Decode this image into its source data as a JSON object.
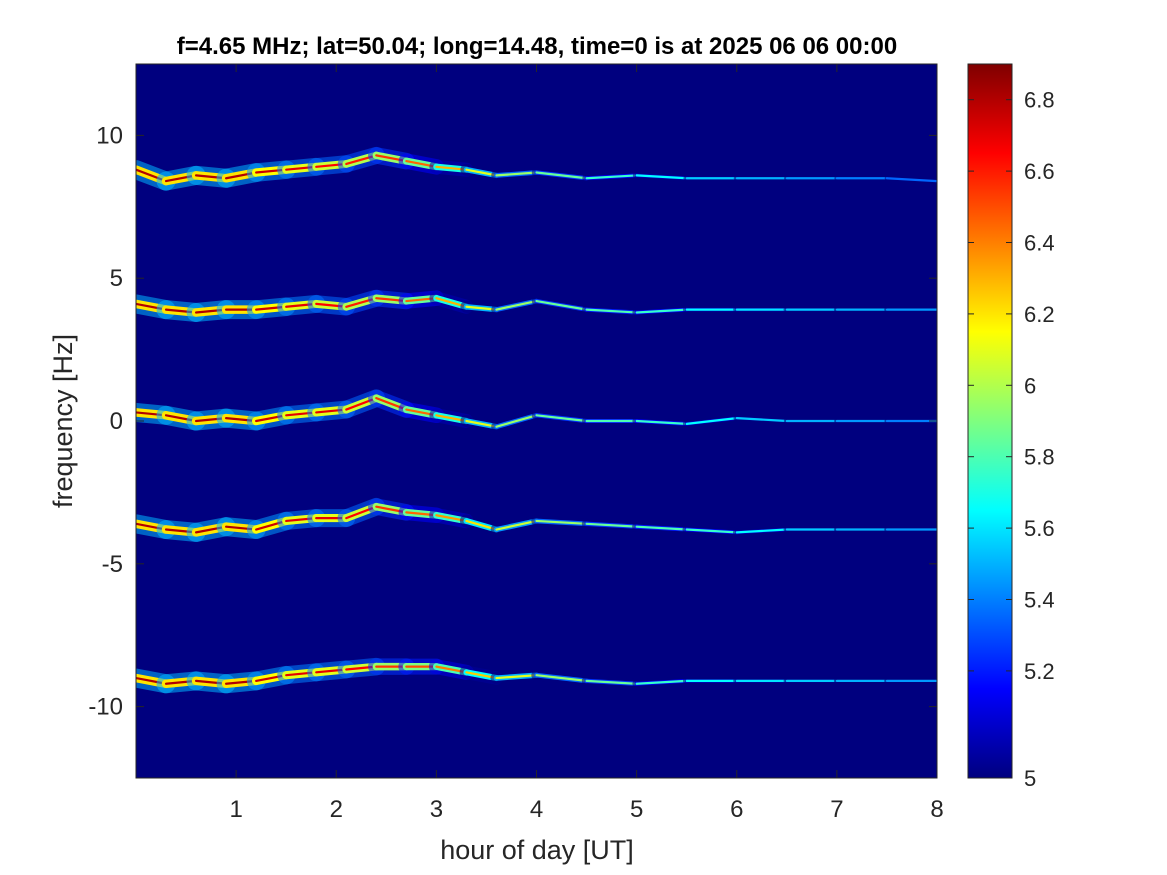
{
  "chart_data": {
    "type": "heatmap",
    "title": "f=4.65 MHz;  lat=50.04; long=14.48, time=0 is at 2025 06 06 00:00",
    "xlabel": "hour of day [UT]",
    "ylabel": "frequency [Hz]",
    "xlim": [
      0,
      8
    ],
    "ylim": [
      -12.5,
      12.5
    ],
    "x_ticks": [
      1,
      2,
      3,
      4,
      5,
      6,
      7,
      8
    ],
    "x_tick_labels": [
      "1",
      "2",
      "3",
      "4",
      "5",
      "6",
      "7",
      "8"
    ],
    "y_ticks": [
      10,
      5,
      0,
      -5,
      -10
    ],
    "y_tick_labels": [
      "10",
      "5",
      "0",
      "-5",
      "-10"
    ],
    "colorbar": {
      "colormap": "jet",
      "range": [
        4.9,
        6.9
      ],
      "ticks": [
        4.9,
        5.2,
        5.4,
        5.6,
        5.8,
        6.0,
        6.2,
        6.4,
        6.6,
        6.8
      ],
      "tick_labels": [
        "5",
        "5.2",
        "5.4",
        "5.6",
        "5.8",
        "6",
        "6.2",
        "6.4",
        "6.6",
        "6.8"
      ],
      "colors": [
        "#00007f",
        "#0000ff",
        "#007fff",
        "#00ffff",
        "#7fff7f",
        "#ffff00",
        "#ff7f00",
        "#ff0000",
        "#7f0000"
      ]
    },
    "background_value": 4.9,
    "traces": [
      {
        "points": [
          [
            0,
            8.8
          ],
          [
            0.3,
            8.4
          ],
          [
            0.6,
            8.6
          ],
          [
            0.9,
            8.5
          ],
          [
            1.2,
            8.7
          ],
          [
            1.5,
            8.8
          ],
          [
            1.8,
            8.9
          ],
          [
            2.1,
            9.0
          ],
          [
            2.4,
            9.3
          ],
          [
            2.7,
            9.1
          ],
          [
            3.0,
            8.9
          ],
          [
            3.3,
            8.8
          ],
          [
            3.6,
            8.6
          ],
          [
            4.0,
            8.7
          ],
          [
            4.5,
            8.5
          ],
          [
            5.0,
            8.6
          ],
          [
            5.5,
            8.5
          ],
          [
            6.0,
            8.5
          ],
          [
            6.5,
            8.5
          ],
          [
            7.0,
            8.5
          ],
          [
            7.5,
            8.5
          ],
          [
            8.0,
            8.4
          ]
        ],
        "strength": [
          6.8,
          6.8,
          6.8,
          6.8,
          6.8,
          6.7,
          6.7,
          6.6,
          6.6,
          6.5,
          6.4,
          6.2,
          6.0,
          5.9,
          5.8,
          5.7,
          5.6,
          5.5,
          5.5,
          5.4,
          5.4,
          5.3
        ]
      },
      {
        "points": [
          [
            0,
            4.1
          ],
          [
            0.3,
            3.9
          ],
          [
            0.6,
            3.8
          ],
          [
            0.9,
            3.9
          ],
          [
            1.2,
            3.9
          ],
          [
            1.5,
            4.0
          ],
          [
            1.8,
            4.1
          ],
          [
            2.1,
            4.0
          ],
          [
            2.4,
            4.3
          ],
          [
            2.7,
            4.2
          ],
          [
            3.0,
            4.3
          ],
          [
            3.3,
            4.0
          ],
          [
            3.6,
            3.9
          ],
          [
            4.0,
            4.2
          ],
          [
            4.5,
            3.9
          ],
          [
            5.0,
            3.8
          ],
          [
            5.5,
            3.9
          ],
          [
            6.0,
            3.9
          ],
          [
            6.5,
            3.9
          ],
          [
            7.0,
            3.9
          ],
          [
            7.5,
            3.9
          ],
          [
            8.0,
            3.9
          ]
        ],
        "strength": [
          6.8,
          6.8,
          6.8,
          6.8,
          6.8,
          6.7,
          6.7,
          6.6,
          6.6,
          6.5,
          6.4,
          6.2,
          6.0,
          5.9,
          5.8,
          5.8,
          5.7,
          5.6,
          5.6,
          5.5,
          5.5,
          5.4
        ]
      },
      {
        "points": [
          [
            0,
            0.3
          ],
          [
            0.3,
            0.2
          ],
          [
            0.6,
            0.0
          ],
          [
            0.9,
            0.1
          ],
          [
            1.2,
            0.0
          ],
          [
            1.5,
            0.2
          ],
          [
            1.8,
            0.3
          ],
          [
            2.1,
            0.4
          ],
          [
            2.4,
            0.8
          ],
          [
            2.7,
            0.4
          ],
          [
            3.0,
            0.2
          ],
          [
            3.3,
            0.0
          ],
          [
            3.6,
            -0.2
          ],
          [
            4.0,
            0.2
          ],
          [
            4.5,
            0.0
          ],
          [
            5.0,
            0.0
          ],
          [
            5.5,
            -0.1
          ],
          [
            6.0,
            0.1
          ],
          [
            6.5,
            0.0
          ],
          [
            7.0,
            0.0
          ],
          [
            7.5,
            0.0
          ],
          [
            8.0,
            0.0
          ]
        ],
        "strength": [
          6.8,
          6.8,
          6.8,
          6.8,
          6.8,
          6.7,
          6.7,
          6.7,
          6.6,
          6.5,
          6.4,
          6.2,
          6.0,
          5.9,
          5.8,
          5.8,
          5.7,
          5.6,
          5.5,
          5.5,
          5.4,
          5.4
        ]
      },
      {
        "points": [
          [
            0,
            -3.6
          ],
          [
            0.3,
            -3.8
          ],
          [
            0.6,
            -3.9
          ],
          [
            0.9,
            -3.7
          ],
          [
            1.2,
            -3.8
          ],
          [
            1.5,
            -3.5
          ],
          [
            1.8,
            -3.4
          ],
          [
            2.1,
            -3.4
          ],
          [
            2.4,
            -3.0
          ],
          [
            2.7,
            -3.2
          ],
          [
            3.0,
            -3.3
          ],
          [
            3.3,
            -3.5
          ],
          [
            3.6,
            -3.8
          ],
          [
            4.0,
            -3.5
          ],
          [
            4.5,
            -3.6
          ],
          [
            5.0,
            -3.7
          ],
          [
            5.5,
            -3.8
          ],
          [
            6.0,
            -3.9
          ],
          [
            6.5,
            -3.8
          ],
          [
            7.0,
            -3.8
          ],
          [
            7.5,
            -3.8
          ],
          [
            8.0,
            -3.8
          ]
        ],
        "strength": [
          6.8,
          6.8,
          6.8,
          6.8,
          6.8,
          6.7,
          6.7,
          6.7,
          6.6,
          6.5,
          6.4,
          6.3,
          6.1,
          6.0,
          5.9,
          5.8,
          5.8,
          5.7,
          5.6,
          5.5,
          5.5,
          5.4
        ]
      },
      {
        "points": [
          [
            0,
            -9.0
          ],
          [
            0.3,
            -9.2
          ],
          [
            0.6,
            -9.1
          ],
          [
            0.9,
            -9.2
          ],
          [
            1.2,
            -9.1
          ],
          [
            1.5,
            -8.9
          ],
          [
            1.8,
            -8.8
          ],
          [
            2.1,
            -8.7
          ],
          [
            2.4,
            -8.6
          ],
          [
            2.7,
            -8.6
          ],
          [
            3.0,
            -8.6
          ],
          [
            3.3,
            -8.8
          ],
          [
            3.6,
            -9.0
          ],
          [
            4.0,
            -8.9
          ],
          [
            4.5,
            -9.1
          ],
          [
            5.0,
            -9.2
          ],
          [
            5.5,
            -9.1
          ],
          [
            6.0,
            -9.1
          ],
          [
            6.5,
            -9.1
          ],
          [
            7.0,
            -9.1
          ],
          [
            7.5,
            -9.1
          ],
          [
            8.0,
            -9.1
          ]
        ],
        "strength": [
          6.8,
          6.8,
          6.8,
          6.8,
          6.8,
          6.7,
          6.7,
          6.7,
          6.6,
          6.5,
          6.5,
          6.3,
          6.2,
          6.0,
          5.9,
          5.8,
          5.7,
          5.6,
          5.6,
          5.5,
          5.5,
          5.4
        ]
      }
    ]
  }
}
